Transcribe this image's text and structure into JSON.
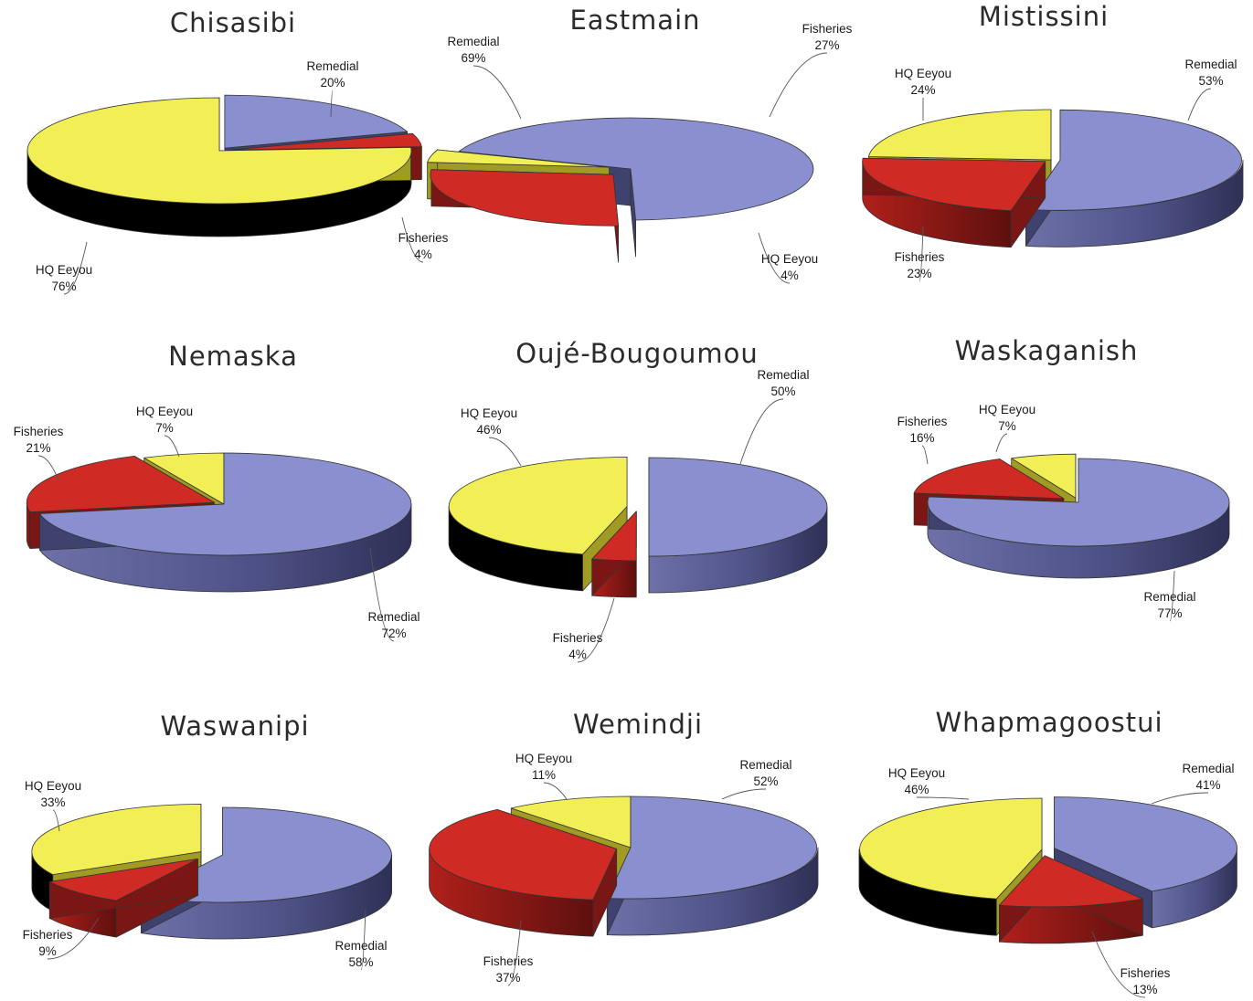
{
  "series_colors": {
    "Remedial": "#8a8fd0",
    "Fisheries": "#d02a24",
    "HQ Eeyou": "#f1ee56"
  },
  "side_colors": {
    "Remedial": "#3f426f",
    "Fisheries": "#7a1613",
    "HQ Eeyou": "#a09b22"
  },
  "chart_data": [
    {
      "type": "pie",
      "title": "Chisasibi",
      "slices": [
        {
          "label": "Remedial",
          "pct_label": "20%",
          "value": 20
        },
        {
          "label": "Fisheries",
          "pct_label": "4%",
          "value": 4
        },
        {
          "label": "HQ Eeyou",
          "pct_label": "76%",
          "value": 76
        }
      ]
    },
    {
      "type": "pie",
      "title": "Eastmain",
      "slices": [
        {
          "label": "Remedial",
          "pct_label": "69%",
          "value": 69
        },
        {
          "label": "Fisheries",
          "pct_label": "27%",
          "value": 27
        },
        {
          "label": "HQ Eeyou",
          "pct_label": "4%",
          "value": 4
        }
      ]
    },
    {
      "type": "pie",
      "title": "Mistissini",
      "slices": [
        {
          "label": "Remedial",
          "pct_label": "53%",
          "value": 53
        },
        {
          "label": "Fisheries",
          "pct_label": "23%",
          "value": 23
        },
        {
          "label": "HQ Eeyou",
          "pct_label": "24%",
          "value": 24
        }
      ]
    },
    {
      "type": "pie",
      "title": "Nemaska",
      "slices": [
        {
          "label": "Remedial",
          "pct_label": "72%",
          "value": 72
        },
        {
          "label": "Fisheries",
          "pct_label": "21%",
          "value": 21
        },
        {
          "label": "HQ Eeyou",
          "pct_label": "7%",
          "value": 7
        }
      ]
    },
    {
      "type": "pie",
      "title": "Oujé-Bougoumou",
      "slices": [
        {
          "label": "Remedial",
          "pct_label": "50%",
          "value": 50
        },
        {
          "label": "Fisheries",
          "pct_label": "4%",
          "value": 4
        },
        {
          "label": "HQ Eeyou",
          "pct_label": "46%",
          "value": 46
        }
      ]
    },
    {
      "type": "pie",
      "title": "Waskaganish",
      "slices": [
        {
          "label": "Remedial",
          "pct_label": "77%",
          "value": 77
        },
        {
          "label": "Fisheries",
          "pct_label": "16%",
          "value": 16
        },
        {
          "label": "HQ Eeyou",
          "pct_label": "7%",
          "value": 7
        }
      ]
    },
    {
      "type": "pie",
      "title": "Waswanipi",
      "slices": [
        {
          "label": "Remedial",
          "pct_label": "58%",
          "value": 58
        },
        {
          "label": "Fisheries",
          "pct_label": "9%",
          "value": 9
        },
        {
          "label": "HQ Eeyou",
          "pct_label": "33%",
          "value": 33
        }
      ]
    },
    {
      "type": "pie",
      "title": "Wemindji",
      "slices": [
        {
          "label": "Remedial",
          "pct_label": "52%",
          "value": 52
        },
        {
          "label": "Fisheries",
          "pct_label": "37%",
          "value": 37
        },
        {
          "label": "HQ Eeyou",
          "pct_label": "11%",
          "value": 11
        }
      ]
    },
    {
      "type": "pie",
      "title": "Whapmagoostui",
      "slices": [
        {
          "label": "Remedial",
          "pct_label": "41%",
          "value": 41
        },
        {
          "label": "Fisheries",
          "pct_label": "13%",
          "value": 13
        },
        {
          "label": "HQ Eeyou",
          "pct_label": "46%",
          "value": 46
        }
      ]
    }
  ]
}
